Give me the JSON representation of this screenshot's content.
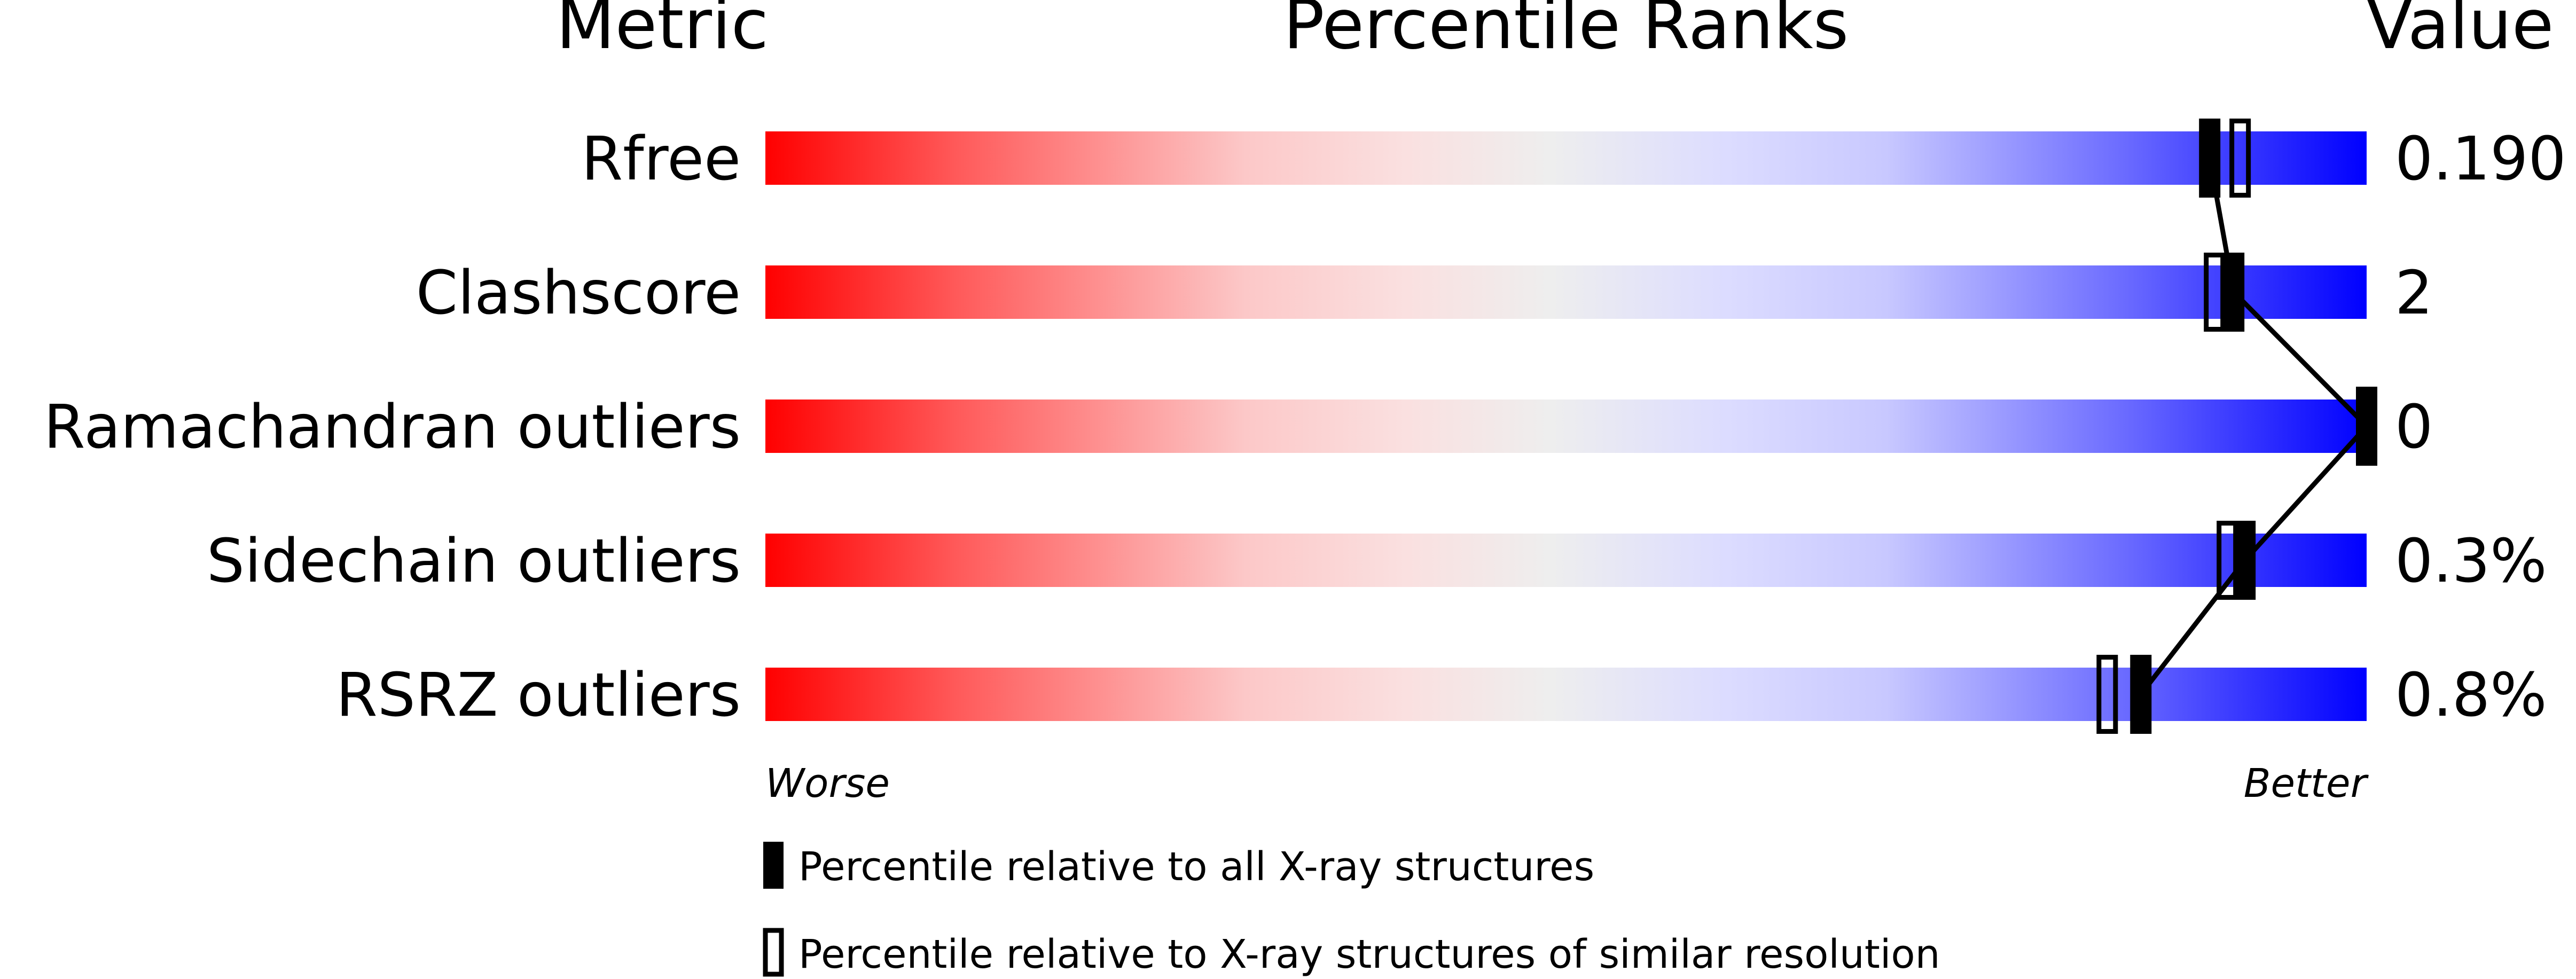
{
  "chart_data": {
    "type": "percentile-rank-slider",
    "headers": {
      "metric": "Metric",
      "ranks": "Percentile Ranks",
      "value": "Value"
    },
    "xlim": [
      0,
      100
    ],
    "axis_labels": {
      "left": "Worse",
      "right": "Better"
    },
    "metrics": [
      {
        "name": "Rfree",
        "value": "0.190",
        "percentile_all": 90.2,
        "percentile_similar": 92.1
      },
      {
        "name": "Clashscore",
        "value": "2",
        "percentile_all": 91.7,
        "percentile_similar": 90.5
      },
      {
        "name": "Ramachandran outliers",
        "value": "0",
        "percentile_all": 100,
        "percentile_similar": null
      },
      {
        "name": "Sidechain outliers",
        "value": "0.3%",
        "percentile_all": 92.4,
        "percentile_similar": 91.3
      },
      {
        "name": "RSRZ outliers",
        "value": "0.8%",
        "percentile_all": 85.9,
        "percentile_similar": 83.8
      }
    ],
    "legend": [
      {
        "marker": "filled",
        "label": "Percentile relative to all X-ray structures"
      },
      {
        "marker": "open",
        "label": "Percentile relative to X-ray structures of similar resolution"
      }
    ],
    "colors": {
      "worse": "#ff0000",
      "middle": "#eeeeee",
      "better": "#0000ff",
      "marker": "#000000"
    }
  }
}
